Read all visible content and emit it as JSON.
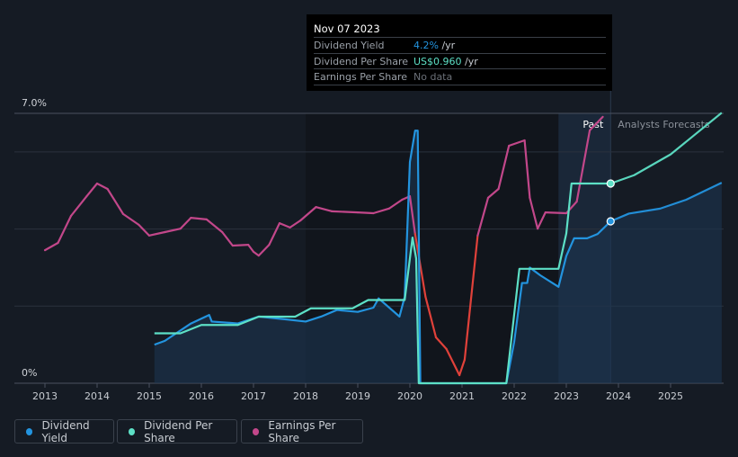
{
  "chart_data": {
    "type": "line",
    "y_axis": {
      "ylim": [
        0,
        7
      ],
      "tick_labels": [
        "0%",
        "7.0%"
      ],
      "gridlines": [
        2,
        4,
        6,
        7
      ]
    },
    "x_axis": {
      "tick_labels": [
        "2013",
        "2014",
        "2015",
        "2016",
        "2017",
        "2018",
        "2019",
        "2020",
        "2021",
        "2022",
        "2023",
        "2024",
        "2025"
      ],
      "xlim": [
        2012.97,
        2025.98
      ]
    },
    "regions": {
      "past_label": "Past",
      "forecast_label": "Analysts Forecasts",
      "past_band": [
        2022.85,
        2023.85
      ],
      "hover_date_year": 2023.85
    },
    "series": [
      {
        "name": "Dividend Yield",
        "unit": "%",
        "color": "#2394df",
        "points": [
          [
            2015.1,
            1.0
          ],
          [
            2015.3,
            1.1
          ],
          [
            2015.8,
            1.55
          ],
          [
            2016.15,
            1.77
          ],
          [
            2016.2,
            1.6
          ],
          [
            2016.7,
            1.55
          ],
          [
            2017.1,
            1.73
          ],
          [
            2017.6,
            1.66
          ],
          [
            2018.0,
            1.6
          ],
          [
            2018.3,
            1.73
          ],
          [
            2018.6,
            1.9
          ],
          [
            2019.0,
            1.85
          ],
          [
            2019.3,
            1.96
          ],
          [
            2019.4,
            2.2
          ],
          [
            2019.8,
            1.73
          ],
          [
            2019.9,
            2.24
          ],
          [
            2020.0,
            5.74
          ],
          [
            2020.1,
            6.55
          ],
          [
            2020.15,
            6.55
          ],
          [
            2020.2,
            0
          ],
          [
            2021.85,
            0
          ],
          [
            2022.0,
            1.07
          ],
          [
            2022.15,
            2.6
          ],
          [
            2022.25,
            2.6
          ],
          [
            2022.3,
            3.0
          ],
          [
            2022.5,
            2.8
          ],
          [
            2022.85,
            2.5
          ],
          [
            2023.0,
            3.3
          ],
          [
            2023.15,
            3.76
          ],
          [
            2023.4,
            3.76
          ],
          [
            2023.6,
            3.87
          ],
          [
            2023.85,
            4.2
          ]
        ],
        "forecast": [
          [
            2023.85,
            4.2
          ],
          [
            2024.2,
            4.4
          ],
          [
            2024.8,
            4.53
          ],
          [
            2025.3,
            4.76
          ],
          [
            2025.98,
            5.2
          ]
        ]
      },
      {
        "name": "Dividend Per Share",
        "unit": "US$",
        "color": "#5de0c6",
        "points": [
          [
            2015.1,
            0.24
          ],
          [
            2015.6,
            0.24
          ],
          [
            2016.0,
            0.28
          ],
          [
            2016.7,
            0.28
          ],
          [
            2017.1,
            0.32
          ],
          [
            2017.8,
            0.32
          ],
          [
            2018.1,
            0.36
          ],
          [
            2018.9,
            0.36
          ],
          [
            2019.2,
            0.4
          ],
          [
            2019.9,
            0.4
          ],
          [
            2020.05,
            0.7
          ],
          [
            2020.12,
            0.6
          ],
          [
            2020.17,
            0
          ],
          [
            2021.85,
            0
          ],
          [
            2022.1,
            0.55
          ],
          [
            2022.85,
            0.55
          ],
          [
            2023.0,
            0.72
          ],
          [
            2023.1,
            0.96
          ],
          [
            2023.85,
            0.96
          ]
        ],
        "forecast": [
          [
            2023.85,
            0.96
          ],
          [
            2024.3,
            1.0
          ],
          [
            2025.0,
            1.1
          ],
          [
            2025.98,
            1.3
          ]
        ]
      },
      {
        "name": "Earnings Per Share",
        "unit": "index",
        "color": "#c2478a",
        "decline_color": "#e0413a",
        "decline_range": [
          2020.1,
          2021.35
        ],
        "points": [
          [
            2013.0,
            3.45
          ],
          [
            2013.25,
            3.64
          ],
          [
            2013.5,
            4.34
          ],
          [
            2013.8,
            4.85
          ],
          [
            2014.0,
            5.18
          ],
          [
            2014.2,
            5.04
          ],
          [
            2014.5,
            4.39
          ],
          [
            2014.8,
            4.11
          ],
          [
            2015.0,
            3.83
          ],
          [
            2015.3,
            3.92
          ],
          [
            2015.6,
            4.01
          ],
          [
            2015.8,
            4.29
          ],
          [
            2016.1,
            4.25
          ],
          [
            2016.4,
            3.92
          ],
          [
            2016.6,
            3.57
          ],
          [
            2016.9,
            3.59
          ],
          [
            2017.0,
            3.41
          ],
          [
            2017.1,
            3.31
          ],
          [
            2017.3,
            3.59
          ],
          [
            2017.5,
            4.15
          ],
          [
            2017.7,
            4.04
          ],
          [
            2017.9,
            4.22
          ],
          [
            2018.2,
            4.57
          ],
          [
            2018.5,
            4.46
          ],
          [
            2019.0,
            4.43
          ],
          [
            2019.3,
            4.41
          ],
          [
            2019.6,
            4.53
          ],
          [
            2019.85,
            4.76
          ],
          [
            2020.0,
            4.85
          ],
          [
            2020.1,
            3.87
          ],
          [
            2020.3,
            2.24
          ],
          [
            2020.5,
            1.19
          ],
          [
            2020.7,
            0.89
          ],
          [
            2020.95,
            0.21
          ],
          [
            2021.05,
            0.61
          ],
          [
            2021.3,
            3.83
          ],
          [
            2021.5,
            4.81
          ],
          [
            2021.7,
            5.04
          ],
          [
            2021.9,
            6.16
          ],
          [
            2022.2,
            6.3
          ],
          [
            2022.3,
            4.81
          ],
          [
            2022.45,
            4.01
          ],
          [
            2022.6,
            4.43
          ],
          [
            2023.0,
            4.41
          ],
          [
            2023.2,
            4.71
          ],
          [
            2023.45,
            6.56
          ],
          [
            2023.7,
            6.91
          ]
        ]
      }
    ]
  },
  "tooltip": {
    "date": "Nov 07 2023",
    "rows": [
      {
        "label": "Dividend Yield",
        "value": "4.2%",
        "unit": "/yr",
        "color": "#2394df"
      },
      {
        "label": "Dividend Per Share",
        "value": "US$0.960",
        "unit": "/yr",
        "color": "#5de0c6"
      },
      {
        "label": "Earnings Per Share",
        "value": "No data",
        "unit": "",
        "color": "#6b7078"
      }
    ]
  },
  "legend": [
    {
      "label": "Dividend Yield",
      "color": "#2394df"
    },
    {
      "label": "Dividend Per Share",
      "color": "#5de0c6"
    },
    {
      "label": "Earnings Per Share",
      "color": "#c2478a"
    }
  ]
}
